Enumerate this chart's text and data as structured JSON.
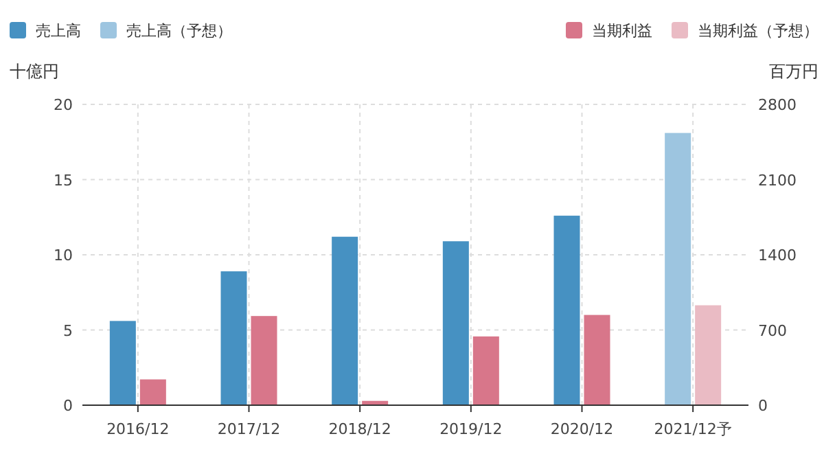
{
  "chart_data": {
    "type": "bar",
    "ylabel": "十億円",
    "y2label": "百万円",
    "categories": [
      "2016/12",
      "2017/12",
      "2018/12",
      "2019/12",
      "2020/12",
      "2021/12予"
    ],
    "series": [
      {
        "name": "売上高",
        "color": "#4691c2",
        "values": [
          5.6,
          8.9,
          11.2,
          10.9,
          12.6,
          null
        ]
      },
      {
        "name": "売上高（予想）",
        "color": "#9dc5e0",
        "values": [
          null,
          null,
          null,
          null,
          null,
          18.1
        ]
      },
      {
        "name": "当期利益",
        "color": "#d8768a",
        "axis": "y2",
        "values": [
          240,
          830,
          40,
          640,
          840,
          null
        ]
      },
      {
        "name": "当期利益（予想）",
        "color": "#eabbc4",
        "axis": "y2",
        "values": [
          null,
          null,
          null,
          null,
          null,
          930
        ]
      }
    ],
    "ylim": [
      0,
      20
    ],
    "yticks": [
      0,
      5,
      10,
      15,
      20
    ],
    "y2lim": [
      0,
      2800
    ],
    "y2ticks": [
      0,
      700,
      1400,
      2100,
      2800
    ],
    "grid": true,
    "legend": "top"
  }
}
